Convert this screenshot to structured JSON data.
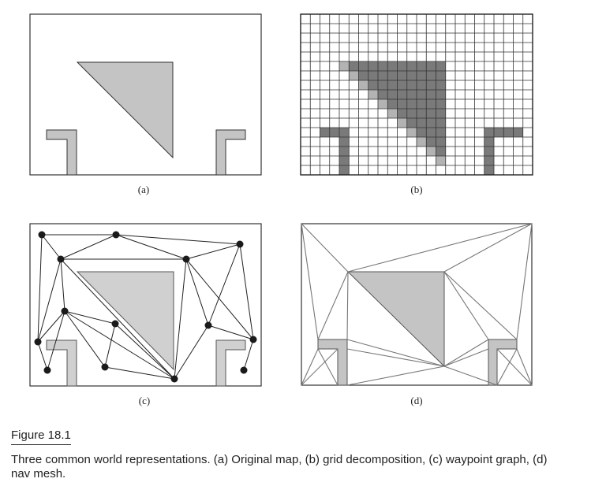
{
  "panels": [
    {
      "id": "a",
      "label": "(a)"
    },
    {
      "id": "b",
      "label": "(b)"
    },
    {
      "id": "c",
      "label": "(c)"
    },
    {
      "id": "d",
      "label": "(d)"
    }
  ],
  "figure": {
    "title": "Figure 18.1",
    "caption": "Three common world representations. (a) Original map, (b) grid decomposition, (c) waypoint graph, (d) nav mesh."
  },
  "colors": {
    "obstacle": "#c4c4c4",
    "grid_blocked": "#7a7a7a",
    "outline": "#333333",
    "mesh_edge": "#777777",
    "waypoint": "#1a1a1a"
  }
}
